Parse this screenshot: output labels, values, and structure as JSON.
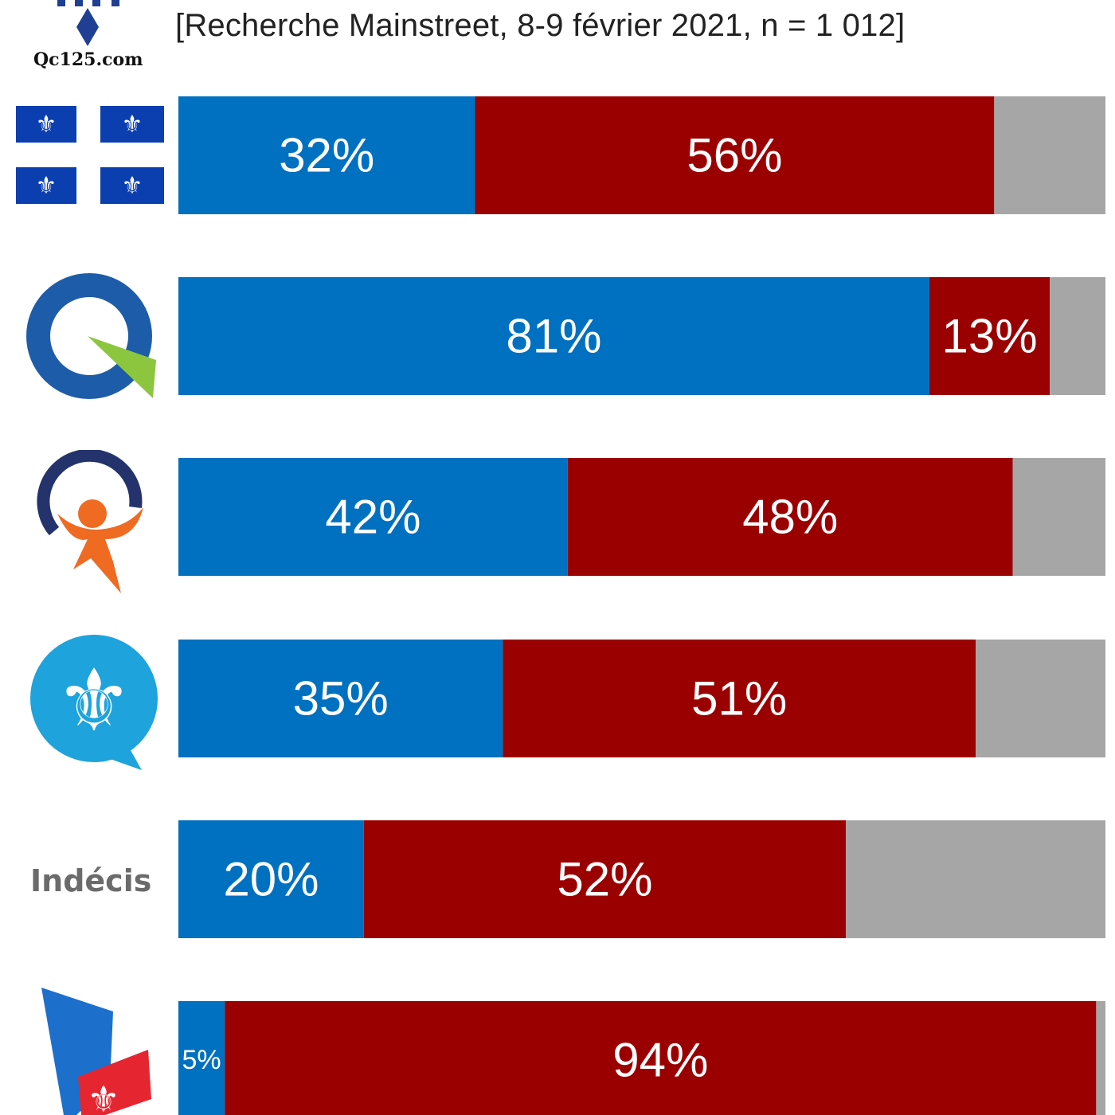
{
  "header": {
    "subtitle": "[Recherche Mainstreet, 8-9 février 2021, n = 1 012]",
    "brand_text": "Qc125.com"
  },
  "colors": {
    "yes": "#0070c0",
    "no": "#9b0000",
    "other": "#a6a6a6",
    "label": "#ffffff",
    "category_label": "#6b6b6b"
  },
  "chart_data": {
    "type": "bar",
    "orientation": "horizontal",
    "stacked": true,
    "xlim": [
      0,
      100
    ],
    "grid": false,
    "categories": [
      {
        "label": "",
        "icon": "quebec-flag-icon"
      },
      {
        "label": "",
        "icon": "caq-logo-icon"
      },
      {
        "label": "",
        "icon": "pq-logo-icon"
      },
      {
        "label": "",
        "icon": "pcq-logo-icon"
      },
      {
        "label": "Indécis",
        "icon": ""
      },
      {
        "label": "",
        "icon": "plq-logo-icon"
      }
    ],
    "series": [
      {
        "color": "#0070c0",
        "values": [
          32,
          81,
          42,
          35,
          20,
          5
        ],
        "labels": [
          "32%",
          "81%",
          "42%",
          "35%",
          "20%",
          "5%"
        ]
      },
      {
        "color": "#9b0000",
        "values": [
          56,
          13,
          48,
          51,
          52,
          94
        ],
        "labels": [
          "56%",
          "13%",
          "48%",
          "51%",
          "52%",
          "94%"
        ]
      },
      {
        "color": "#a6a6a6",
        "values": [
          12,
          6,
          10,
          14,
          28,
          1
        ],
        "labels": [
          "",
          "",
          "",
          "",
          "",
          ""
        ]
      }
    ]
  }
}
